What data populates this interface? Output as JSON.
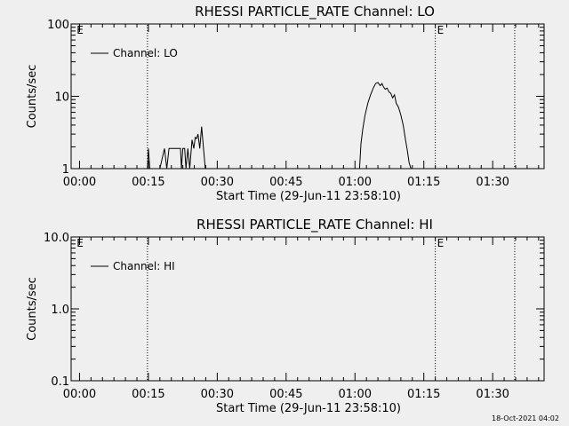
{
  "footer": {
    "timestamp": "18-Oct-2021 04:02"
  },
  "chart_data": [
    {
      "type": "line",
      "title": "RHESSI PARTICLE_RATE Channel: LO",
      "xlabel": "Start Time (29-Jun-11 23:58:10)",
      "ylabel": "Counts/sec",
      "yscale": "log",
      "ylim": [
        1,
        100
      ],
      "y_ticks": [
        1,
        10,
        100
      ],
      "y_tick_labels": [
        "1",
        "10",
        "100"
      ],
      "x_unit": "minutes after 00:00 (29-Jun-11 23:58:10 start)",
      "xlim": [
        -1.83,
        101.2
      ],
      "x_ticks": [
        0,
        15,
        30,
        45,
        60,
        75,
        90
      ],
      "x_tick_labels": [
        "00:00",
        "00:15",
        "00:30",
        "00:45",
        "01:00",
        "01:15",
        "01:30"
      ],
      "grid": false,
      "legend_position": "top-left",
      "series": [
        {
          "name": "Channel: LO",
          "x": [
            -0.5,
            14.8,
            15.0,
            15.3,
            15.6,
            16.5,
            17.5,
            18.5,
            19.0,
            19.5,
            20.0,
            20.5,
            21.0,
            21.5,
            22.0,
            22.2,
            22.5,
            22.9,
            23.2,
            23.6,
            24.0,
            24.5,
            24.9,
            25.2,
            25.5,
            25.8,
            26.2,
            26.6,
            27.0,
            27.4,
            61.0,
            61.3,
            61.7,
            62.2,
            62.8,
            63.4,
            64.0,
            64.5,
            65.0,
            65.5,
            65.9,
            66.2,
            66.6,
            67.0,
            67.4,
            67.8,
            68.2,
            68.6,
            69.0,
            69.5,
            70.0,
            70.5,
            71.0,
            71.4,
            71.8,
            72.2,
            101.2
          ],
          "y": [
            1,
            1,
            1.9,
            1,
            1,
            1,
            1,
            1.9,
            1,
            1.9,
            1.9,
            1.9,
            1.9,
            1.9,
            1.9,
            1,
            1.9,
            1.9,
            1,
            1.9,
            1,
            2.5,
            1.9,
            2.7,
            2.6,
            3.0,
            1.9,
            3.8,
            1.9,
            1,
            1,
            2.2,
            3.5,
            5.5,
            8.0,
            10.5,
            13.0,
            15.0,
            15.5,
            14.0,
            15.0,
            13.5,
            12.5,
            13.0,
            11.5,
            11.0,
            9.5,
            10.5,
            8.0,
            7.0,
            5.5,
            4.0,
            2.5,
            1.8,
            1.2,
            1,
            1
          ]
        }
      ],
      "annotations": [
        {
          "x": -1.0,
          "label": "E",
          "style": "none"
        },
        {
          "x": 14.8,
          "label": "",
          "style": "dotted"
        },
        {
          "x": 77.5,
          "label": "E",
          "style": "dotted"
        },
        {
          "x": 94.8,
          "label": "",
          "style": "dotted"
        }
      ]
    },
    {
      "type": "line",
      "title": "RHESSI PARTICLE_RATE Channel: HI",
      "xlabel": "Start Time (29-Jun-11 23:58:10)",
      "ylabel": "Counts/sec",
      "yscale": "log",
      "ylim": [
        0.1,
        10
      ],
      "y_ticks": [
        0.1,
        1,
        10
      ],
      "y_tick_labels": [
        "0.1",
        "1.0",
        "10.0"
      ],
      "x_unit": "minutes after 00:00 (29-Jun-11 23:58:10 start)",
      "xlim": [
        -1.83,
        101.2
      ],
      "x_ticks": [
        0,
        15,
        30,
        45,
        60,
        75,
        90
      ],
      "x_tick_labels": [
        "00:00",
        "00:15",
        "00:30",
        "00:45",
        "01:00",
        "01:15",
        "01:30"
      ],
      "grid": false,
      "legend_position": "top-left",
      "series": [
        {
          "name": "Channel: HI",
          "x": [],
          "y": []
        }
      ],
      "annotations": [
        {
          "x": -1.0,
          "label": "E",
          "style": "none"
        },
        {
          "x": 14.8,
          "label": "",
          "style": "dotted"
        },
        {
          "x": 77.5,
          "label": "E",
          "style": "dotted"
        },
        {
          "x": 94.8,
          "label": "",
          "style": "dotted"
        }
      ]
    }
  ]
}
